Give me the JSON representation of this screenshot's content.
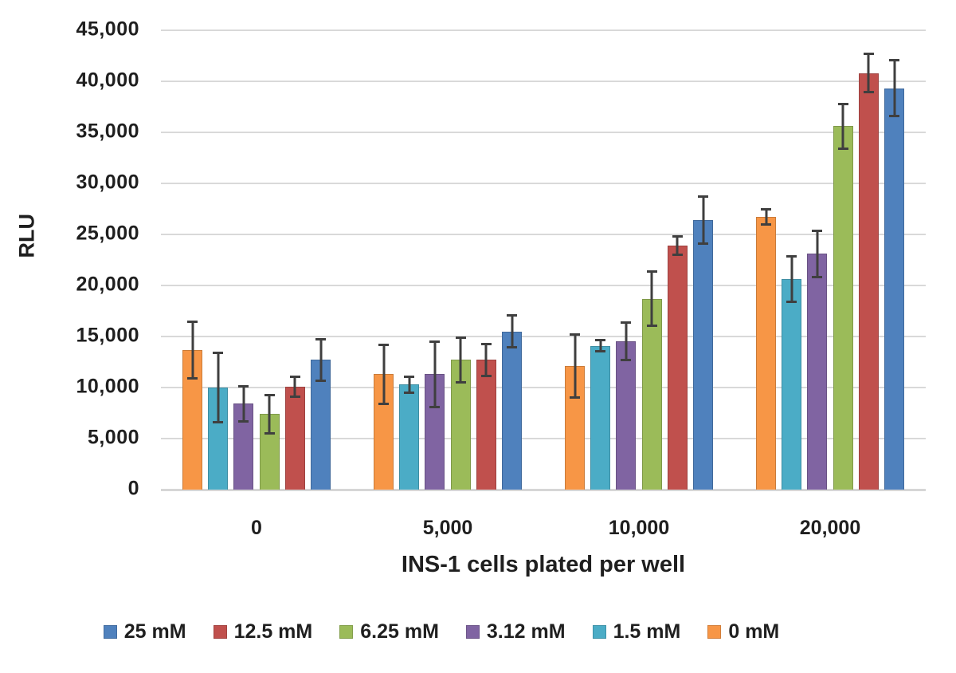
{
  "chart_data": {
    "type": "bar",
    "title": "",
    "xlabel": "INS-1 cells plated per well",
    "ylabel": "RLU",
    "categories": [
      "0",
      "5,000",
      "10,000",
      "20,000"
    ],
    "ylim": [
      0,
      45000
    ],
    "ytick_step": 5000,
    "yticks": [
      "0",
      "5,000",
      "10,000",
      "15,000",
      "20,000",
      "25,000",
      "30,000",
      "35,000",
      "40,000",
      "45,000"
    ],
    "grid": true,
    "legend_position": "bottom",
    "legend_order": [
      "25 mM",
      "12.5 mM",
      "6.25 mM",
      "3.12 mM",
      "1.5 mM",
      "0 mM"
    ],
    "series": [
      {
        "name": "0 mM",
        "color": "#F79646",
        "values": [
          13700,
          11300,
          12100,
          26700
        ],
        "errors": [
          2900,
          3000,
          3200,
          850
        ]
      },
      {
        "name": "1.5 mM",
        "color": "#4BACC6",
        "values": [
          10000,
          10300,
          14100,
          20600
        ],
        "errors": [
          3500,
          900,
          650,
          2350
        ]
      },
      {
        "name": "3.12 mM",
        "color": "#8064A2",
        "values": [
          8400,
          11300,
          14500,
          23100
        ],
        "errors": [
          1800,
          3300,
          1950,
          2400
        ]
      },
      {
        "name": "6.25 mM",
        "color": "#9BBB59",
        "values": [
          7400,
          12700,
          18700,
          35600
        ],
        "errors": [
          2000,
          2300,
          2800,
          2300
        ]
      },
      {
        "name": "12.5 mM",
        "color": "#C0504D",
        "values": [
          10100,
          12700,
          23900,
          40800
        ],
        "errors": [
          1100,
          1650,
          1000,
          2000
        ]
      },
      {
        "name": "25 mM",
        "color": "#4F81BD",
        "values": [
          12700,
          15500,
          26400,
          39300
        ],
        "errors": [
          2150,
          1700,
          2400,
          2850
        ]
      }
    ],
    "colors": {
      "gridline": "#d9d9d9",
      "error_bar": "#3f3f3f",
      "text": "#1f1f1f",
      "background": "#ffffff"
    }
  }
}
